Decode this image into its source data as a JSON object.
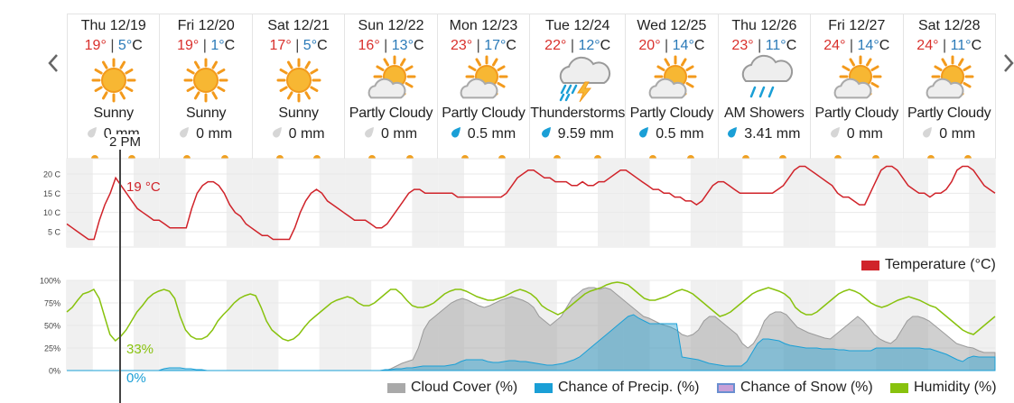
{
  "days": [
    {
      "date": "Thu 12/19",
      "hi": "19°",
      "lo": "5°",
      "unit": "C",
      "cond": "Sunny",
      "precip": "0 mm",
      "icon": "sun-icon",
      "wet": false
    },
    {
      "date": "Fri 12/20",
      "hi": "19°",
      "lo": "1°",
      "unit": "C",
      "cond": "Sunny",
      "precip": "0 mm",
      "icon": "sun-icon",
      "wet": false
    },
    {
      "date": "Sat 12/21",
      "hi": "17°",
      "lo": "5°",
      "unit": "C",
      "cond": "Sunny",
      "precip": "0 mm",
      "icon": "sun-icon",
      "wet": false
    },
    {
      "date": "Sun 12/22",
      "hi": "16°",
      "lo": "13°",
      "unit": "C",
      "cond": "Partly Cloudy",
      "precip": "0 mm",
      "icon": "partly-cloudy-icon",
      "wet": false
    },
    {
      "date": "Mon 12/23",
      "hi": "23°",
      "lo": "17°",
      "unit": "C",
      "cond": "Partly Cloudy",
      "precip": "0.5 mm",
      "icon": "partly-cloudy-icon",
      "wet": true
    },
    {
      "date": "Tue 12/24",
      "hi": "22°",
      "lo": "12°",
      "unit": "C",
      "cond": "Thunderstorms",
      "precip": "9.59 mm",
      "icon": "thunderstorm-icon",
      "wet": true
    },
    {
      "date": "Wed 12/25",
      "hi": "20°",
      "lo": "14°",
      "unit": "C",
      "cond": "Partly Cloudy",
      "precip": "0.5 mm",
      "icon": "partly-cloudy-icon",
      "wet": true
    },
    {
      "date": "Thu 12/26",
      "hi": "23°",
      "lo": "11°",
      "unit": "C",
      "cond": "AM Showers",
      "precip": "3.41 mm",
      "icon": "rain-cloud-icon",
      "wet": true
    },
    {
      "date": "Fri 12/27",
      "hi": "24°",
      "lo": "14°",
      "unit": "C",
      "cond": "Partly Cloudy",
      "precip": "0 mm",
      "icon": "partly-cloudy-icon",
      "wet": false
    },
    {
      "date": "Sat 12/28",
      "hi": "24°",
      "lo": "11°",
      "unit": "C",
      "cond": "Partly Cloudy",
      "precip": "0 mm",
      "icon": "partly-cloudy-icon",
      "wet": false
    }
  ],
  "separator": "|",
  "cursor": {
    "time": "2 PM",
    "temp": "19 °C",
    "humidity": "33%",
    "precip": "0%"
  },
  "colors": {
    "temperature": "#d0232a",
    "cloud": "#a9a9a9",
    "precip": "#1a9fd6",
    "snow": "#c8a0d8",
    "humidity": "#88c20e",
    "hi": "#d9302c",
    "lo": "#2a7ab8",
    "sun": "#f0a020"
  },
  "chart_data": [
    {
      "type": "line",
      "title": "",
      "ylabel": "",
      "yticks": [
        "20 C",
        "15 C",
        "10 C",
        "5 C"
      ],
      "ytick_values": [
        20,
        15,
        10,
        5
      ],
      "ylim": [
        1,
        24
      ],
      "series": [
        {
          "name": "Temperature (°C)",
          "values": [
            7,
            6,
            5,
            4,
            3,
            3,
            8,
            12,
            15,
            19,
            17,
            15,
            13,
            11,
            10,
            9,
            8,
            8,
            7,
            6,
            6,
            6,
            6,
            11,
            15,
            17,
            18,
            18,
            17,
            15,
            12,
            10,
            9,
            7,
            6,
            5,
            4,
            4,
            3,
            3,
            3,
            3,
            6,
            10,
            13,
            15,
            16,
            15,
            13,
            12,
            11,
            10,
            9,
            8,
            8,
            8,
            7,
            6,
            6,
            7,
            9,
            11,
            13,
            15,
            16,
            16,
            15,
            15,
            15,
            15,
            15,
            15,
            14,
            14,
            14,
            14,
            14,
            14,
            14,
            14,
            14,
            15,
            17,
            19,
            20,
            21,
            21,
            20,
            19,
            19,
            18,
            18,
            18,
            17,
            17,
            18,
            17,
            17,
            18,
            18,
            19,
            20,
            21,
            21,
            20,
            19,
            18,
            17,
            16,
            16,
            15,
            15,
            14,
            14,
            13,
            13,
            12,
            13,
            15,
            17,
            18,
            18,
            17,
            16,
            15,
            15,
            15,
            15,
            15,
            15,
            15,
            16,
            17,
            19,
            21,
            22,
            22,
            21,
            20,
            19,
            18,
            17,
            15,
            14,
            14,
            13,
            12,
            12,
            15,
            18,
            21,
            22,
            22,
            21,
            19,
            17,
            16,
            15,
            15,
            14,
            15,
            15,
            16,
            18,
            21,
            22,
            22,
            21,
            19,
            17,
            16,
            15
          ]
        }
      ],
      "legend": "Temperature (°C)",
      "legend_position": "bottom-right",
      "grid": "alternating day/night bands"
    },
    {
      "type": "area",
      "title": "",
      "yticks": [
        "100%",
        "75%",
        "50%",
        "25%",
        "0%"
      ],
      "ytick_values": [
        100,
        75,
        50,
        25,
        0
      ],
      "ylim": [
        0,
        100
      ],
      "series": [
        {
          "name": "Cloud Cover (%)",
          "values": [
            0,
            0,
            0,
            0,
            0,
            0,
            0,
            0,
            0,
            0,
            0,
            0,
            0,
            0,
            0,
            0,
            0,
            0,
            0,
            0,
            0,
            0,
            0,
            0,
            0,
            0,
            0,
            0,
            0,
            0,
            0,
            0,
            0,
            0,
            0,
            0,
            0,
            0,
            0,
            0,
            0,
            0,
            0,
            0,
            0,
            0,
            0,
            0,
            0,
            0,
            0,
            0,
            0,
            0,
            0,
            0,
            0,
            0,
            0,
            2,
            5,
            8,
            10,
            12,
            25,
            45,
            55,
            60,
            65,
            70,
            75,
            78,
            80,
            78,
            75,
            72,
            70,
            72,
            75,
            78,
            80,
            82,
            80,
            78,
            75,
            70,
            60,
            55,
            50,
            55,
            60,
            70,
            80,
            85,
            90,
            92,
            92,
            90,
            92,
            90,
            85,
            80,
            75,
            70,
            65,
            60,
            58,
            55,
            52,
            50,
            48,
            45,
            40,
            38,
            40,
            45,
            55,
            60,
            60,
            55,
            50,
            45,
            40,
            30,
            25,
            30,
            40,
            55,
            62,
            65,
            65,
            62,
            55,
            48,
            45,
            42,
            40,
            38,
            36,
            35,
            40,
            45,
            50,
            55,
            60,
            55,
            48,
            40,
            35,
            32,
            30,
            35,
            45,
            55,
            60,
            60,
            58,
            55,
            50,
            45,
            40,
            35,
            30,
            28,
            26,
            25,
            22,
            20,
            20,
            20
          ]
        },
        {
          "name": "Chance of Precip. (%)",
          "values": [
            0,
            0,
            0,
            0,
            0,
            0,
            0,
            0,
            0,
            0,
            0,
            0,
            0,
            0,
            0,
            0,
            0,
            0,
            2,
            3,
            3,
            3,
            2,
            2,
            1,
            1,
            0,
            0,
            0,
            0,
            0,
            0,
            0,
            0,
            0,
            0,
            0,
            0,
            0,
            0,
            0,
            0,
            0,
            0,
            0,
            0,
            0,
            0,
            0,
            0,
            0,
            0,
            0,
            0,
            0,
            0,
            0,
            0,
            0,
            1,
            1,
            2,
            2,
            3,
            3,
            4,
            5,
            5,
            5,
            5,
            5,
            6,
            7,
            10,
            12,
            12,
            12,
            12,
            10,
            9,
            9,
            10,
            11,
            11,
            10,
            10,
            9,
            8,
            7,
            6,
            6,
            7,
            8,
            10,
            12,
            15,
            20,
            25,
            30,
            35,
            40,
            45,
            50,
            55,
            60,
            62,
            58,
            55,
            52,
            52,
            52,
            52,
            52,
            52,
            15,
            14,
            13,
            12,
            10,
            8,
            7,
            6,
            5,
            5,
            5,
            5,
            10,
            20,
            30,
            35,
            35,
            34,
            33,
            30,
            28,
            27,
            26,
            25,
            25,
            25,
            24,
            24,
            24,
            23,
            23,
            22,
            22,
            22,
            22,
            22,
            25,
            25,
            25,
            25,
            25,
            25,
            25,
            25,
            25,
            24,
            24,
            22,
            20,
            18,
            15,
            12,
            10,
            14,
            16,
            15,
            15,
            15,
            15
          ]
        },
        {
          "name": "Chance of Snow (%)",
          "values": [
            0
          ]
        },
        {
          "name": "Humidity (%)",
          "values": [
            65,
            70,
            78,
            85,
            87,
            90,
            80,
            60,
            40,
            33,
            38,
            45,
            55,
            65,
            72,
            80,
            85,
            88,
            90,
            88,
            80,
            60,
            45,
            38,
            35,
            35,
            38,
            45,
            55,
            62,
            68,
            75,
            80,
            83,
            85,
            83,
            70,
            55,
            45,
            40,
            35,
            33,
            35,
            40,
            48,
            55,
            60,
            65,
            70,
            75,
            78,
            80,
            82,
            80,
            75,
            72,
            72,
            75,
            80,
            85,
            90,
            90,
            85,
            78,
            72,
            70,
            70,
            72,
            75,
            80,
            85,
            88,
            90,
            90,
            88,
            85,
            82,
            80,
            78,
            78,
            80,
            82,
            85,
            88,
            90,
            88,
            85,
            80,
            72,
            68,
            65,
            62,
            65,
            70,
            75,
            80,
            85,
            88,
            90,
            92,
            95,
            97,
            98,
            97,
            95,
            90,
            85,
            80,
            78,
            78,
            80,
            82,
            85,
            88,
            90,
            88,
            85,
            80,
            75,
            70,
            65,
            60,
            62,
            65,
            70,
            75,
            80,
            85,
            88,
            90,
            92,
            90,
            88,
            85,
            80,
            70,
            65,
            62,
            62,
            65,
            70,
            75,
            80,
            85,
            88,
            90,
            88,
            85,
            80,
            75,
            72,
            70,
            72,
            75,
            78,
            80,
            82,
            80,
            78,
            75,
            72,
            70,
            65,
            60,
            55,
            50,
            45,
            42,
            40,
            45,
            50,
            55,
            60
          ]
        }
      ],
      "legend_position": "bottom"
    }
  ]
}
